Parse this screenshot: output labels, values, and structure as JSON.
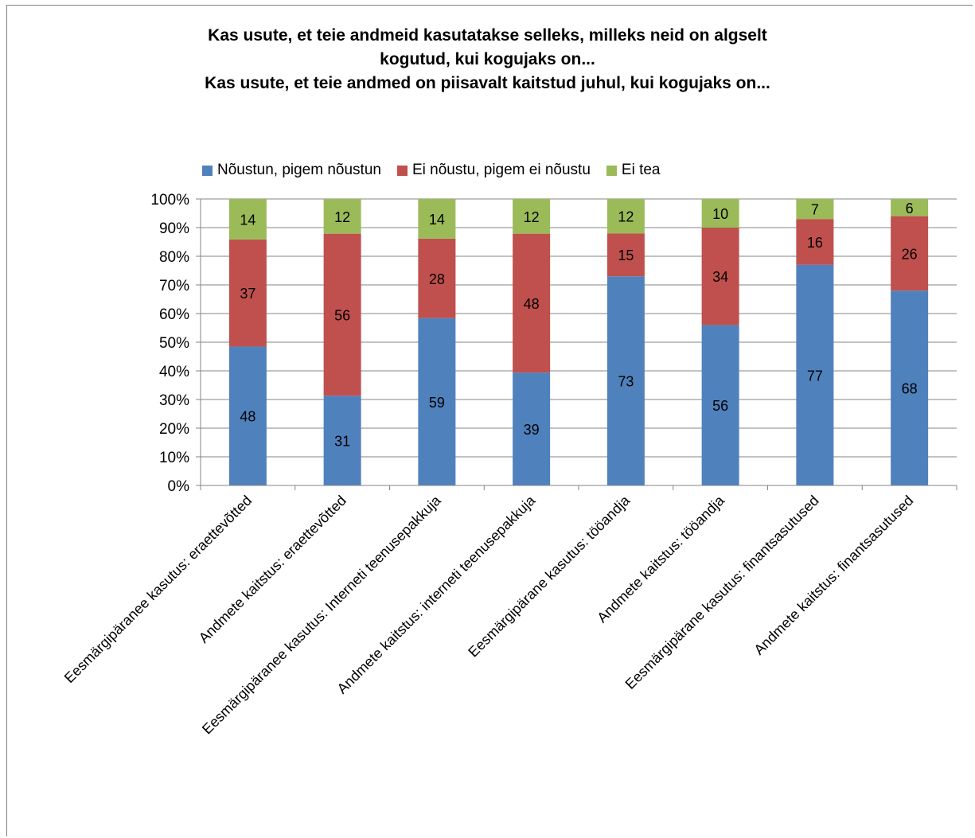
{
  "chart_data": {
    "type": "bar",
    "stacked": true,
    "percent": true,
    "title_lines": [
      "Kas usute, et teie andmeid kasutatakse selleks, milleks neid on algselt",
      "kogutud, kui kogujaks on...",
      "Kas usute, et teie andmed on piisavalt kaitstud juhul, kui kogujaks on..."
    ],
    "categories": [
      "Eesmärgipäranee kasutus: eraettevõtted",
      "Andmete kaitstus: eraettevõtted",
      "Eesmärgipäranee kasutus: Interneti teenusepakkuja",
      "Andmete kaitstus: interneti teenusepakkuja",
      "Eesmärgipärane kasutus: tööandja",
      "Andmete kaitstus: tööandja",
      "Eesmärgipärane kasutus: finantsasutused",
      "Andmete kaitstus: finantsasutused"
    ],
    "series": [
      {
        "name": "Nõustun, pigem nõustun",
        "color": "#4f81bd",
        "values": [
          48,
          31,
          59,
          39,
          73,
          56,
          77,
          68
        ]
      },
      {
        "name": "Ei nõustu, pigem ei nõustu",
        "color": "#c0504d",
        "values": [
          37,
          56,
          28,
          48,
          15,
          34,
          16,
          26
        ]
      },
      {
        "name": "Ei tea",
        "color": "#9bbb59",
        "values": [
          14,
          12,
          14,
          12,
          12,
          10,
          7,
          6
        ]
      }
    ],
    "yticks": [
      "0%",
      "10%",
      "20%",
      "30%",
      "40%",
      "50%",
      "60%",
      "70%",
      "80%",
      "90%",
      "100%"
    ],
    "ylim": [
      0,
      100
    ],
    "grid": true,
    "legend_position": "top"
  }
}
